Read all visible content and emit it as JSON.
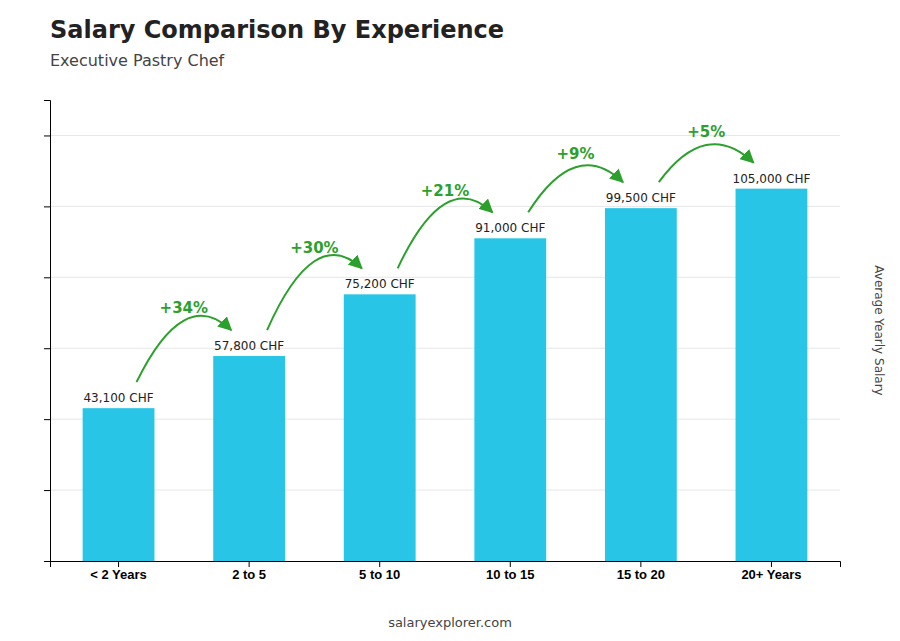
{
  "chart_data": {
    "type": "bar",
    "title": "Salary Comparison By Experience",
    "subtitle": "Executive Pastry Chef",
    "ylabel": "Average Yearly Salary",
    "footer": "salaryexplorer.com",
    "categories": [
      "< 2 Years",
      "2 to 5",
      "5 to 10",
      "10 to 15",
      "15 to 20",
      "20+ Years"
    ],
    "values": [
      43100,
      57800,
      75200,
      91000,
      99500,
      105000
    ],
    "value_labels": [
      "43,100 CHF",
      "57,800 CHF",
      "75,200 CHF",
      "91,000 CHF",
      "99,500 CHF",
      "105,000 CHF"
    ],
    "data_labels": true,
    "annotations": [
      "+34%",
      "+30%",
      "+21%",
      "+9%",
      "+5%"
    ],
    "color": "#29c5e6",
    "ylim": [
      0,
      130000
    ],
    "yticks": [
      20000,
      40000,
      60000,
      80000,
      100000,
      120000
    ],
    "grid": true,
    "tick_labels": "x"
  }
}
